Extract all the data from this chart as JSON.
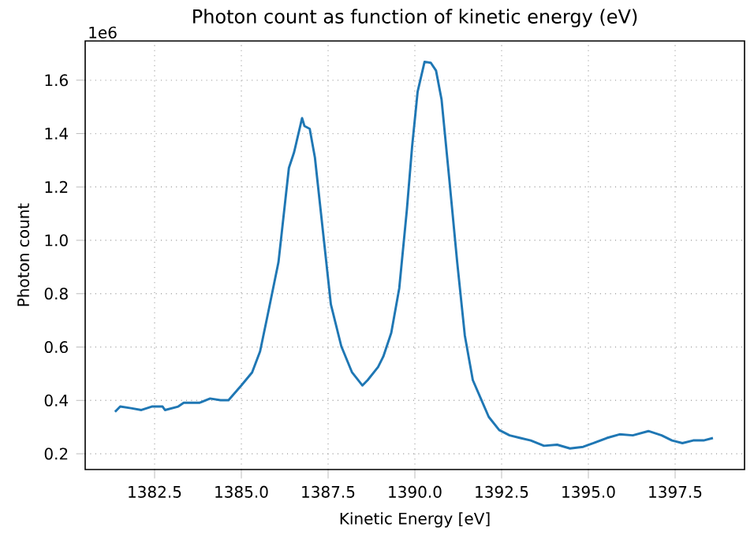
{
  "chart_data": {
    "type": "line",
    "title": "Photon count as function of kinetic energy (eV)",
    "xlabel": "Kinetic Energy [eV]",
    "ylabel": "Photon count",
    "annotations": [
      "1e6"
    ],
    "x": [
      1381.36,
      1381.51,
      1381.82,
      1382.12,
      1382.42,
      1382.73,
      1382.8,
      1383.18,
      1383.34,
      1383.79,
      1384.1,
      1384.4,
      1384.63,
      1385.0,
      1385.31,
      1385.54,
      1385.76,
      1386.07,
      1386.37,
      1386.52,
      1386.75,
      1386.82,
      1386.97,
      1387.12,
      1387.35,
      1387.58,
      1387.88,
      1388.19,
      1388.49,
      1388.64,
      1388.94,
      1389.09,
      1389.32,
      1389.55,
      1389.77,
      1389.92,
      1390.08,
      1390.28,
      1390.46,
      1390.61,
      1390.77,
      1390.99,
      1391.22,
      1391.44,
      1391.67,
      1391.9,
      1392.13,
      1392.43,
      1392.73,
      1393.04,
      1393.34,
      1393.72,
      1394.1,
      1394.47,
      1394.85,
      1395.15,
      1395.53,
      1395.9,
      1396.28,
      1396.73,
      1397.11,
      1397.41,
      1397.71,
      1398.02,
      1398.32,
      1398.59
    ],
    "series": [
      {
        "color": "#1f77b4",
        "values": [
          0.357,
          0.377,
          0.371,
          0.364,
          0.377,
          0.377,
          0.364,
          0.377,
          0.391,
          0.391,
          0.407,
          0.401,
          0.401,
          0.456,
          0.505,
          0.584,
          0.721,
          0.918,
          1.271,
          1.33,
          1.458,
          1.428,
          1.418,
          1.31,
          1.035,
          0.76,
          0.603,
          0.505,
          0.456,
          0.476,
          0.525,
          0.564,
          0.653,
          0.82,
          1.115,
          1.35,
          1.557,
          1.669,
          1.665,
          1.636,
          1.527,
          1.232,
          0.918,
          0.643,
          0.476,
          0.407,
          0.338,
          0.289,
          0.269,
          0.259,
          0.25,
          0.23,
          0.234,
          0.22,
          0.226,
          0.24,
          0.259,
          0.273,
          0.269,
          0.285,
          0.269,
          0.25,
          0.24,
          0.25,
          0.25,
          0.259
        ]
      }
    ],
    "xlim": [
      1380.5,
      1399.5
    ],
    "ylim": [
      0.141,
      1.747
    ],
    "xticks": [
      1382.5,
      {
        "value": 1385,
        "label": "1385.0"
      },
      1387.5,
      {
        "value": 1390,
        "label": "1390.0"
      },
      1392.5,
      {
        "value": 1395,
        "label": "1395.0"
      },
      1397.5
    ],
    "yticks": [
      0.2,
      0.4,
      0.6,
      0.8,
      {
        "value": 1,
        "label": "1.0"
      },
      1.2,
      1.4,
      1.6
    ],
    "grid": true
  }
}
